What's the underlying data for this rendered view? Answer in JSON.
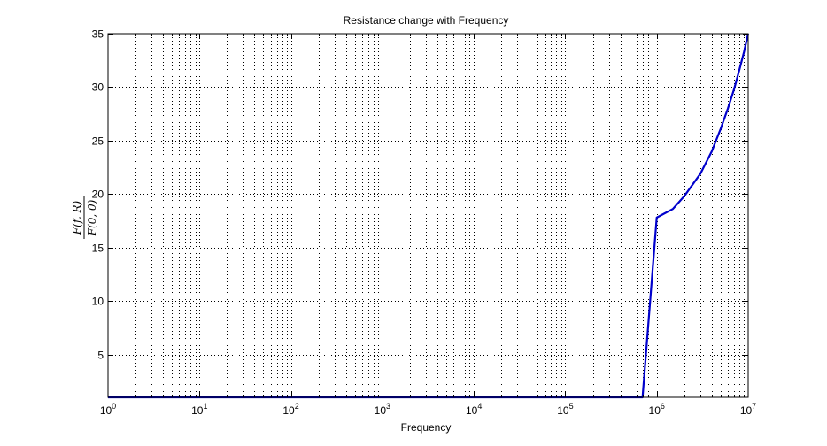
{
  "chart_data": {
    "type": "line",
    "title": "Resistance change with Frequency",
    "xlabel": "Frequency",
    "ylabel": {
      "numerator": "F(f, R)",
      "denominator": "F(0, 0)"
    },
    "xscale": "log",
    "xlim": [
      1,
      10000000
    ],
    "ylim": [
      1,
      35
    ],
    "x_ticks": [
      {
        "base": "10",
        "exp": "0",
        "value": 1
      },
      {
        "base": "10",
        "exp": "1",
        "value": 10
      },
      {
        "base": "10",
        "exp": "2",
        "value": 100
      },
      {
        "base": "10",
        "exp": "3",
        "value": 1000
      },
      {
        "base": "10",
        "exp": "4",
        "value": 10000
      },
      {
        "base": "10",
        "exp": "5",
        "value": 100000
      },
      {
        "base": "10",
        "exp": "6",
        "value": 1000000
      },
      {
        "base": "10",
        "exp": "7",
        "value": 10000000
      }
    ],
    "y_ticks": [
      "5",
      "10",
      "15",
      "20",
      "25",
      "30",
      "35"
    ],
    "grid": "on (major and minor, dotted)",
    "series": [
      {
        "color": "#0000cc",
        "x": [
          1,
          10,
          100,
          1000,
          10000,
          100000,
          700000,
          1000000,
          1500000,
          2000000,
          3000000,
          4000000,
          5000000,
          6000000,
          7000000,
          8000000,
          9000000,
          10000000
        ],
        "y": [
          1,
          1,
          1,
          1,
          1,
          1,
          1,
          17.8,
          18.6,
          19.8,
          21.9,
          24.0,
          26.1,
          28.0,
          29.8,
          31.6,
          33.3,
          35.0
        ]
      }
    ]
  }
}
